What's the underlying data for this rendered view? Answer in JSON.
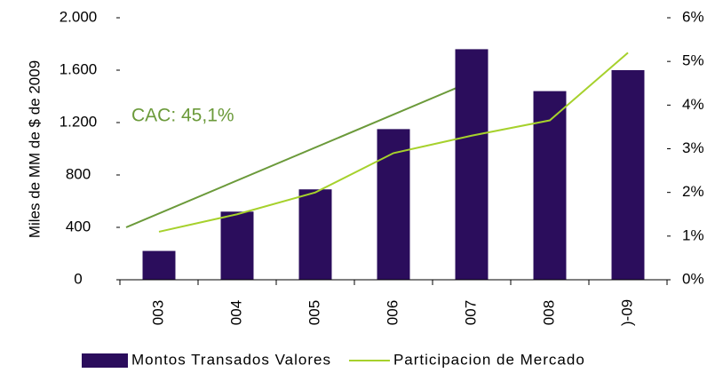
{
  "chart_data": {
    "type": "bar_line",
    "y_label": "Miles de MM de $ de 2009",
    "annotation": "CAC: 45,1%",
    "categories": [
      "003",
      "004",
      "005",
      "006",
      "007",
      "008",
      ")-09"
    ],
    "series": [
      {
        "name": "Montos Transados Valores",
        "color": "#2b0d5c",
        "type": "bar",
        "values": [
          220,
          520,
          690,
          1150,
          1760,
          1440,
          1600
        ]
      },
      {
        "name": "Participacion de Mercado",
        "color": "#a6d12c",
        "type": "line",
        "axis": "y2",
        "values": [
          1.1,
          1.5,
          2.0,
          2.9,
          3.3,
          3.65,
          5.2
        ]
      }
    ],
    "ylim": [
      0,
      2000
    ],
    "yticks": [
      0,
      400,
      800,
      {
        "value": 1200,
        "label": "1.200"
      },
      {
        "value": 1600,
        "label": "1.600"
      },
      {
        "value": 2000,
        "label": "2.000"
      }
    ],
    "y2lim": [
      0,
      6
    ],
    "y2ticks": [
      {
        "value": 0,
        "label": "0%"
      },
      {
        "value": 1,
        "label": "1%"
      },
      {
        "value": 2,
        "label": "2%"
      },
      {
        "value": 3,
        "label": "3%"
      },
      {
        "value": 4,
        "label": "4%"
      },
      {
        "value": 5,
        "label": "5%"
      },
      {
        "value": 6,
        "label": "6%"
      }
    ]
  }
}
